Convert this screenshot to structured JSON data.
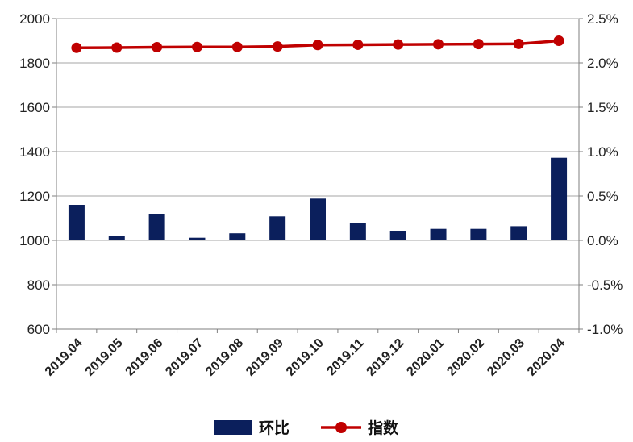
{
  "chart_data": {
    "type": "bar+line",
    "categories": [
      "2019.04",
      "2019.05",
      "2019.06",
      "2019.07",
      "2019.08",
      "2019.09",
      "2019.10",
      "2019.11",
      "2019.12",
      "2020.01",
      "2020.02",
      "2020.03",
      "2020.04"
    ],
    "series": [
      {
        "name": "环比",
        "type": "bar",
        "axis": "right",
        "color": "#0b1f5c",
        "values": [
          0.4,
          0.05,
          0.3,
          0.03,
          0.08,
          0.27,
          0.47,
          0.2,
          0.1,
          0.13,
          0.13,
          0.16,
          0.93
        ]
      },
      {
        "name": "指数",
        "type": "line",
        "axis": "left",
        "color": "#c00000",
        "values": [
          1868,
          1869,
          1871,
          1872,
          1872,
          1874,
          1881,
          1882,
          1883,
          1884,
          1885,
          1886,
          1900
        ]
      }
    ],
    "left_axis": {
      "ylim": [
        600,
        2000
      ],
      "ticks": [
        "600",
        "800",
        "1000",
        "1200",
        "1400",
        "1600",
        "1800",
        "2000"
      ]
    },
    "right_axis": {
      "ylim": [
        -1.0,
        2.5
      ],
      "ticks": [
        "-1.0%",
        "-0.5%",
        "0.0%",
        "0.5%",
        "1.0%",
        "1.5%",
        "2.0%",
        "2.5%"
      ]
    },
    "grid": true,
    "legend": {
      "position": "bottom",
      "items": [
        {
          "label": "环比"
        },
        {
          "label": "指数"
        }
      ]
    }
  }
}
